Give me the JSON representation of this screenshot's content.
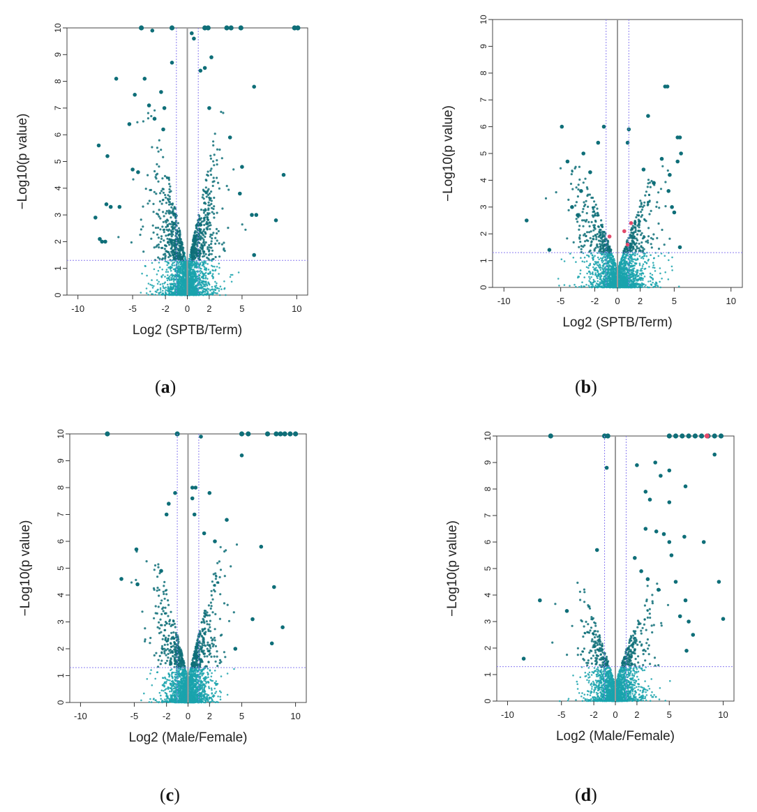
{
  "figure": {
    "colors": {
      "point": "#1aa3ad",
      "point_dark": "#0e6e78",
      "point_hot": "#e24a6a",
      "threshold_line": "#8a7cf0",
      "zero_line": "#9a9a9a",
      "axis": "#333333",
      "frame": "#444444"
    }
  },
  "chart_data": [
    {
      "id": "a",
      "type": "scatter",
      "subtype": "volcano",
      "panel_label": "a",
      "xlabel": "Log2 (SPTB/Term)",
      "ylabel": "−Log10(p value)",
      "xlim": [
        -11,
        11
      ],
      "ylim": [
        0,
        10
      ],
      "x_ticks": [
        -10,
        -5,
        -2,
        0,
        2,
        5,
        10
      ],
      "y_ticks": [
        0,
        1,
        2,
        3,
        4,
        5,
        6,
        7,
        8,
        9,
        10
      ],
      "fold_change_cutoffs": [
        -1,
        1
      ],
      "p_cutoff_log10": 1.3,
      "cloud": {
        "n": 2600,
        "spread": 1.4,
        "max_y": 7.2
      },
      "points": [
        [
          -4.2,
          10,
          1
        ],
        [
          -3.2,
          9.9,
          1
        ],
        [
          -1.4,
          10,
          1
        ],
        [
          0.4,
          9.8,
          1
        ],
        [
          0.6,
          9.6,
          1
        ],
        [
          1.6,
          10,
          1
        ],
        [
          1.9,
          10,
          1
        ],
        [
          3.6,
          10,
          1
        ],
        [
          4.0,
          10,
          1
        ],
        [
          4.9,
          10,
          1
        ],
        [
          9.8,
          10,
          1
        ],
        [
          10.1,
          10,
          1
        ],
        [
          2.2,
          8.9,
          1
        ],
        [
          -6.5,
          8.1,
          1
        ],
        [
          -3.9,
          8.1,
          1
        ],
        [
          -1.4,
          8.7,
          1
        ],
        [
          1.2,
          8.4,
          1
        ],
        [
          1.6,
          8.5,
          1
        ],
        [
          -4.8,
          7.5,
          1
        ],
        [
          -2.4,
          7.6,
          1
        ],
        [
          6.1,
          7.8,
          1
        ],
        [
          -2.1,
          7.0,
          1
        ],
        [
          -3.5,
          7.1,
          1
        ],
        [
          2.0,
          7.0,
          1
        ],
        [
          -5.3,
          6.4,
          1
        ],
        [
          -3.0,
          6.6,
          1
        ],
        [
          -2.2,
          6.2,
          1
        ],
        [
          3.9,
          5.9,
          1
        ],
        [
          -8.1,
          5.6,
          1
        ],
        [
          -7.3,
          5.2,
          1
        ],
        [
          -5.0,
          4.7,
          1
        ],
        [
          -4.5,
          4.6,
          1
        ],
        [
          5.0,
          4.8,
          1
        ],
        [
          8.8,
          4.5,
          1
        ],
        [
          -7.4,
          3.4,
          1
        ],
        [
          -7.0,
          3.3,
          1
        ],
        [
          -6.2,
          3.3,
          1
        ],
        [
          -8.4,
          2.9,
          1
        ],
        [
          5.9,
          3.0,
          1
        ],
        [
          6.3,
          3.0,
          1
        ],
        [
          8.1,
          2.8,
          1
        ],
        [
          -8.0,
          2.1,
          1
        ],
        [
          -7.8,
          2.0,
          1
        ],
        [
          -7.5,
          2.0,
          1
        ],
        [
          6.1,
          1.5,
          1
        ],
        [
          4.8,
          3.8,
          1
        ]
      ]
    },
    {
      "id": "b",
      "type": "scatter",
      "subtype": "volcano",
      "panel_label": "b",
      "xlabel": "Log2 (SPTB/Term)",
      "ylabel": "−Log10(p value)",
      "xlim": [
        -11,
        11
      ],
      "ylim": [
        0,
        10
      ],
      "x_ticks": [
        -10,
        -5,
        -2,
        0,
        2,
        5,
        10
      ],
      "y_ticks": [
        0,
        1,
        2,
        3,
        4,
        5,
        6,
        7,
        8,
        9,
        10
      ],
      "fold_change_cutoffs": [
        -1,
        1
      ],
      "p_cutoff_log10": 1.3,
      "cloud": {
        "n": 2200,
        "spread": 1.6,
        "max_y": 4.6
      },
      "points": [
        [
          -8.0,
          2.5,
          1
        ],
        [
          -6.0,
          1.4,
          1
        ],
        [
          -4.9,
          6.0,
          1
        ],
        [
          -1.2,
          6.0,
          1
        ],
        [
          -3.0,
          5.0,
          1
        ],
        [
          -4.4,
          4.7,
          1
        ],
        [
          -1.7,
          5.4,
          1
        ],
        [
          1.0,
          5.9,
          1
        ],
        [
          0.9,
          5.4,
          1
        ],
        [
          2.7,
          6.4,
          1
        ],
        [
          4.2,
          7.5,
          1
        ],
        [
          4.4,
          7.5,
          1
        ],
        [
          5.3,
          5.6,
          1
        ],
        [
          5.5,
          5.6,
          1
        ],
        [
          5.6,
          5.0,
          1
        ],
        [
          5.3,
          4.7,
          1
        ],
        [
          4.6,
          4.2,
          1
        ],
        [
          3.9,
          4.8,
          1
        ],
        [
          4.5,
          3.6,
          1
        ],
        [
          4.8,
          3.0,
          1
        ],
        [
          5.0,
          2.8,
          1
        ],
        [
          5.5,
          1.5,
          1
        ],
        [
          3.2,
          3.9,
          1
        ],
        [
          2.3,
          4.4,
          1
        ],
        [
          -2.4,
          4.3,
          1
        ],
        [
          -3.2,
          3.6,
          1
        ],
        [
          -4.0,
          3.0,
          1
        ],
        [
          -3.5,
          2.7,
          1
        ],
        [
          0.6,
          2.1,
          2
        ],
        [
          0.9,
          1.6,
          2
        ],
        [
          -0.7,
          1.9,
          2
        ],
        [
          1.2,
          2.4,
          2
        ]
      ]
    },
    {
      "id": "c",
      "type": "scatter",
      "subtype": "volcano",
      "panel_label": "c",
      "xlabel": "Log2 (Male/Female)",
      "ylabel": "−Log10(p value)",
      "xlim": [
        -11,
        11
      ],
      "ylim": [
        0,
        10
      ],
      "x_ticks": [
        -10,
        -5,
        -2,
        0,
        2,
        5,
        10
      ],
      "y_ticks": [
        0,
        1,
        2,
        3,
        4,
        5,
        6,
        7,
        8,
        9,
        10
      ],
      "fold_change_cutoffs": [
        -1,
        1
      ],
      "p_cutoff_log10": 1.3,
      "cloud": {
        "n": 2300,
        "spread": 1.4,
        "max_y": 6.0
      },
      "points": [
        [
          -7.5,
          10,
          1
        ],
        [
          -1.0,
          10,
          1
        ],
        [
          1.2,
          9.9,
          1
        ],
        [
          5.0,
          10,
          1
        ],
        [
          5.6,
          10,
          1
        ],
        [
          7.4,
          10,
          1
        ],
        [
          8.2,
          10,
          1
        ],
        [
          8.6,
          10,
          1
        ],
        [
          9.0,
          10,
          1
        ],
        [
          9.5,
          10,
          1
        ],
        [
          10.0,
          10,
          1
        ],
        [
          5.0,
          9.2,
          1
        ],
        [
          0.4,
          8.0,
          1
        ],
        [
          0.7,
          8.0,
          1
        ],
        [
          2.0,
          7.8,
          1
        ],
        [
          -1.2,
          7.8,
          1
        ],
        [
          -1.8,
          7.4,
          1
        ],
        [
          0.4,
          7.6,
          1
        ],
        [
          -2.0,
          7.0,
          1
        ],
        [
          0.6,
          7.0,
          1
        ],
        [
          3.6,
          6.8,
          1
        ],
        [
          1.5,
          6.3,
          1
        ],
        [
          2.5,
          6.0,
          1
        ],
        [
          6.8,
          5.8,
          1
        ],
        [
          -4.8,
          5.7,
          1
        ],
        [
          -6.2,
          4.6,
          1
        ],
        [
          -4.7,
          4.4,
          1
        ],
        [
          8.0,
          4.3,
          1
        ],
        [
          6.0,
          3.1,
          1
        ],
        [
          8.8,
          2.8,
          1
        ],
        [
          7.8,
          2.2,
          1
        ],
        [
          4.4,
          2.0,
          1
        ],
        [
          -2.5,
          4.9,
          1
        ]
      ]
    },
    {
      "id": "d",
      "type": "scatter",
      "subtype": "volcano",
      "panel_label": "d",
      "xlabel": "Log2 (Male/Female)",
      "ylabel": "−Log10(p value)",
      "xlim": [
        -11,
        11
      ],
      "ylim": [
        0,
        10
      ],
      "x_ticks": [
        -10,
        -5,
        -2,
        0,
        2,
        5,
        10
      ],
      "y_ticks": [
        0,
        1,
        2,
        3,
        4,
        5,
        6,
        7,
        8,
        9,
        10
      ],
      "fold_change_cutoffs": [
        -1,
        1
      ],
      "p_cutoff_log10": 1.3,
      "cloud": {
        "n": 2000,
        "spread": 1.5,
        "max_y": 4.5
      },
      "points": [
        [
          -6.0,
          10,
          1
        ],
        [
          -1.0,
          10,
          1
        ],
        [
          -0.7,
          10,
          1
        ],
        [
          5.0,
          10,
          1
        ],
        [
          5.6,
          10,
          1
        ],
        [
          6.2,
          10,
          1
        ],
        [
          6.8,
          10,
          1
        ],
        [
          7.4,
          10,
          1
        ],
        [
          8.0,
          10,
          1
        ],
        [
          8.6,
          10,
          1
        ],
        [
          9.2,
          10,
          1
        ],
        [
          9.8,
          10,
          1
        ],
        [
          8.5,
          10.0,
          2
        ],
        [
          9.2,
          9.3,
          1
        ],
        [
          2.0,
          8.9,
          1
        ],
        [
          3.7,
          9.0,
          1
        ],
        [
          5.0,
          8.7,
          1
        ],
        [
          4.2,
          8.5,
          1
        ],
        [
          -0.8,
          8.8,
          1
        ],
        [
          6.5,
          8.1,
          1
        ],
        [
          2.8,
          7.9,
          1
        ],
        [
          3.2,
          7.6,
          1
        ],
        [
          5.0,
          7.5,
          1
        ],
        [
          2.8,
          6.5,
          1
        ],
        [
          3.8,
          6.4,
          1
        ],
        [
          4.5,
          6.3,
          1
        ],
        [
          5.0,
          6.0,
          1
        ],
        [
          6.4,
          6.2,
          1
        ],
        [
          8.2,
          6.0,
          1
        ],
        [
          -1.7,
          5.7,
          1
        ],
        [
          1.8,
          5.4,
          1
        ],
        [
          2.4,
          4.9,
          1
        ],
        [
          5.2,
          5.5,
          1
        ],
        [
          3.0,
          4.6,
          1
        ],
        [
          4.0,
          4.2,
          1
        ],
        [
          5.6,
          4.5,
          1
        ],
        [
          6.5,
          3.8,
          1
        ],
        [
          9.6,
          4.5,
          1
        ],
        [
          6.0,
          3.2,
          1
        ],
        [
          6.8,
          3.0,
          1
        ],
        [
          10.0,
          3.1,
          1
        ],
        [
          7.2,
          2.5,
          1
        ],
        [
          6.6,
          1.9,
          1
        ],
        [
          -7.0,
          3.8,
          1
        ],
        [
          -8.5,
          1.6,
          1
        ],
        [
          -4.5,
          3.4,
          1
        ]
      ]
    }
  ]
}
